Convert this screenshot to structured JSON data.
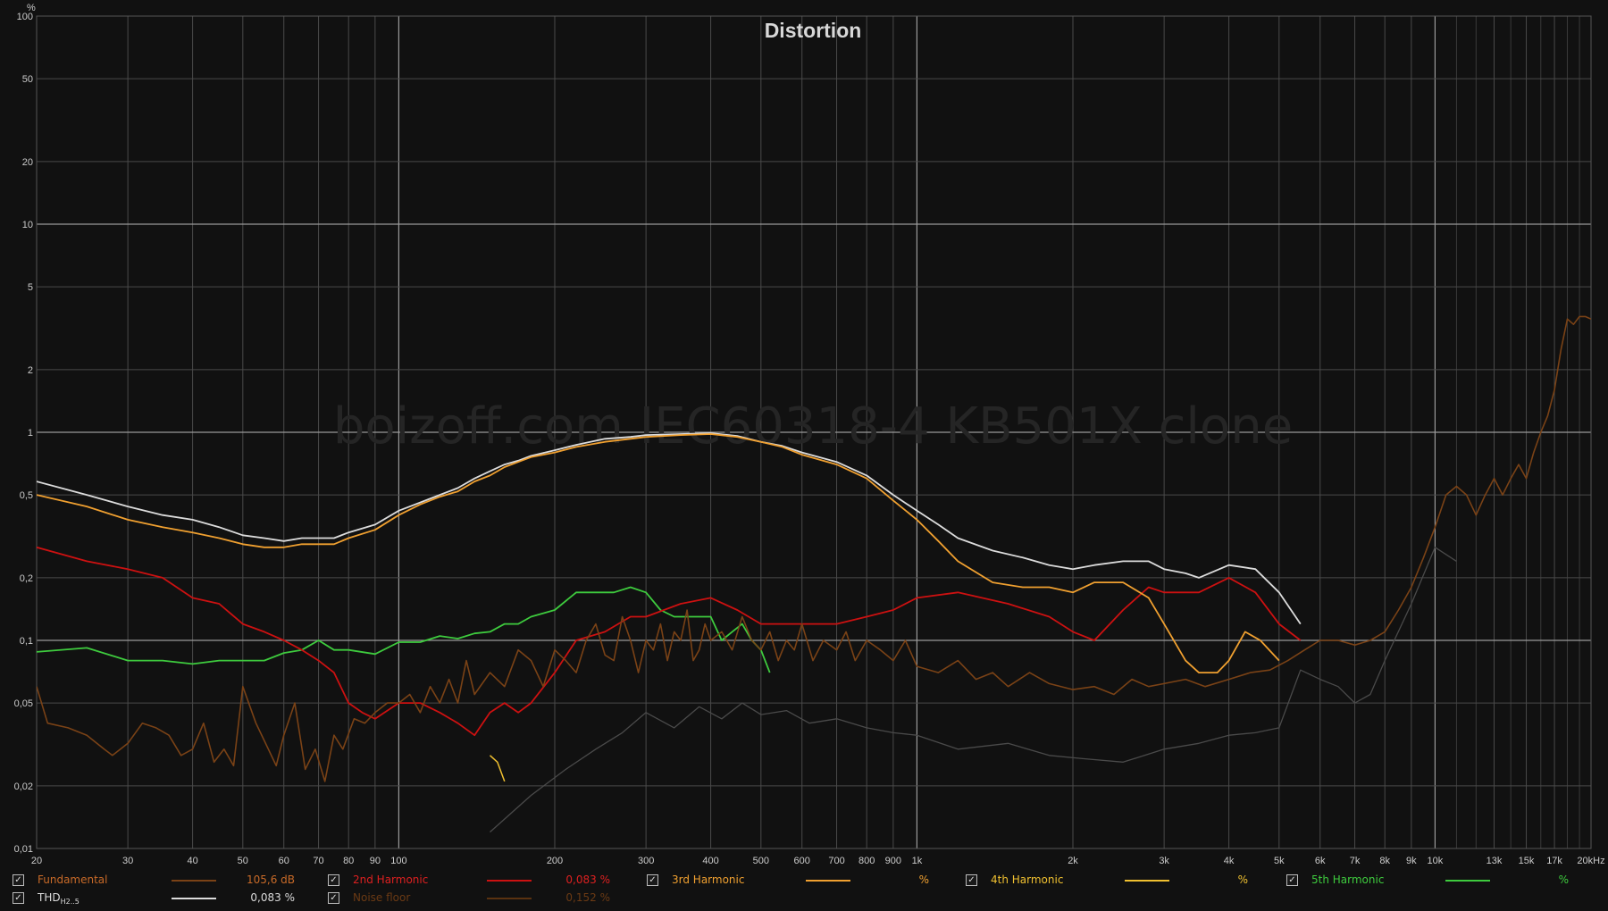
{
  "chart_data": {
    "type": "line",
    "title": "Distortion",
    "watermark": "boizoff.com IEC60318-4 KB501X clone",
    "y_unit": "%",
    "x_unit_label": "20kHz",
    "xscale": "log",
    "yscale": "log",
    "xlim": [
      20,
      20000
    ],
    "ylim": [
      0.01,
      100
    ],
    "grid": true,
    "x_ticks": [
      {
        "v": 20,
        "l": "20"
      },
      {
        "v": 30,
        "l": "30"
      },
      {
        "v": 40,
        "l": "40"
      },
      {
        "v": 50,
        "l": "50"
      },
      {
        "v": 60,
        "l": "60"
      },
      {
        "v": 70,
        "l": "70"
      },
      {
        "v": 80,
        "l": "80"
      },
      {
        "v": 90,
        "l": "90"
      },
      {
        "v": 100,
        "l": "100"
      },
      {
        "v": 200,
        "l": "200"
      },
      {
        "v": 300,
        "l": "300"
      },
      {
        "v": 400,
        "l": "400"
      },
      {
        "v": 500,
        "l": "500"
      },
      {
        "v": 600,
        "l": "600"
      },
      {
        "v": 700,
        "l": "700"
      },
      {
        "v": 800,
        "l": "800"
      },
      {
        "v": 900,
        "l": "900"
      },
      {
        "v": 1000,
        "l": "1k"
      },
      {
        "v": 2000,
        "l": "2k"
      },
      {
        "v": 3000,
        "l": "3k"
      },
      {
        "v": 4000,
        "l": "4k"
      },
      {
        "v": 5000,
        "l": "5k"
      },
      {
        "v": 6000,
        "l": "6k"
      },
      {
        "v": 7000,
        "l": "7k"
      },
      {
        "v": 8000,
        "l": "8k"
      },
      {
        "v": 9000,
        "l": "9k"
      },
      {
        "v": 10000,
        "l": "10k"
      },
      {
        "v": 13000,
        "l": "13k"
      },
      {
        "v": 15000,
        "l": "15k"
      },
      {
        "v": 17000,
        "l": "17k"
      }
    ],
    "x_minor": [
      11000,
      12000,
      14000,
      16000,
      18000,
      19000
    ],
    "y_ticks": [
      {
        "v": 100,
        "l": "100"
      },
      {
        "v": 50,
        "l": "50"
      },
      {
        "v": 20,
        "l": "20"
      },
      {
        "v": 10,
        "l": "10"
      },
      {
        "v": 5,
        "l": "5"
      },
      {
        "v": 2,
        "l": "2"
      },
      {
        "v": 1,
        "l": "1"
      },
      {
        "v": 0.5,
        "l": "0,5"
      },
      {
        "v": 0.2,
        "l": "0,2"
      },
      {
        "v": 0.1,
        "l": "0,1"
      },
      {
        "v": 0.05,
        "l": "0,05"
      },
      {
        "v": 0.02,
        "l": "0,02"
      },
      {
        "v": 0.01,
        "l": "0,01"
      }
    ],
    "series": [
      {
        "name": "Noise floor",
        "color": "#4a4a4a",
        "width": 1.3,
        "x": [
          150,
          180,
          210,
          240,
          270,
          300,
          340,
          380,
          420,
          460,
          500,
          560,
          620,
          700,
          800,
          900,
          1000,
          1200,
          1500,
          1800,
          2100,
          2500,
          3000,
          3500,
          4000,
          4500,
          5000,
          5500,
          6000,
          6500,
          7000,
          7500,
          8000,
          9000,
          10000,
          11000
        ],
        "y": [
          0.012,
          0.018,
          0.024,
          0.03,
          0.036,
          0.045,
          0.038,
          0.048,
          0.042,
          0.05,
          0.044,
          0.046,
          0.04,
          0.042,
          0.038,
          0.036,
          0.035,
          0.03,
          0.032,
          0.028,
          0.027,
          0.026,
          0.03,
          0.032,
          0.035,
          0.036,
          0.038,
          0.072,
          0.065,
          0.06,
          0.05,
          0.055,
          0.08,
          0.15,
          0.28,
          0.24
        ]
      },
      {
        "name": "5th Harmonic",
        "color": "#3ecb3e",
        "width": 1.8,
        "x": [
          20,
          25,
          30,
          35,
          40,
          45,
          50,
          55,
          60,
          65,
          70,
          75,
          80,
          90,
          100,
          110,
          120,
          130,
          140,
          150,
          160,
          170,
          180,
          200,
          220,
          240,
          260,
          280,
          300,
          320,
          340,
          360,
          380,
          400,
          420,
          440,
          460,
          480,
          500,
          520
        ],
        "y": [
          0.088,
          0.092,
          0.08,
          0.08,
          0.077,
          0.08,
          0.08,
          0.08,
          0.087,
          0.09,
          0.1,
          0.09,
          0.09,
          0.086,
          0.098,
          0.098,
          0.105,
          0.102,
          0.108,
          0.11,
          0.12,
          0.12,
          0.13,
          0.14,
          0.17,
          0.17,
          0.17,
          0.18,
          0.17,
          0.14,
          0.13,
          0.13,
          0.13,
          0.13,
          0.1,
          0.11,
          0.12,
          0.1,
          0.09,
          0.07
        ]
      },
      {
        "name": "2nd Harmonic",
        "color": "#cc1111",
        "width": 1.8,
        "x": [
          20,
          25,
          30,
          35,
          40,
          45,
          50,
          55,
          60,
          65,
          70,
          75,
          80,
          85,
          90,
          100,
          110,
          120,
          130,
          140,
          150,
          160,
          170,
          180,
          200,
          220,
          250,
          280,
          300,
          350,
          400,
          450,
          500,
          600,
          700,
          800,
          900,
          1000,
          1200,
          1500,
          1800,
          2000,
          2200,
          2500,
          2800,
          3000,
          3500,
          4000,
          4500,
          5000,
          5500
        ],
        "y": [
          0.28,
          0.24,
          0.22,
          0.2,
          0.16,
          0.15,
          0.12,
          0.11,
          0.1,
          0.09,
          0.08,
          0.07,
          0.05,
          0.045,
          0.042,
          0.05,
          0.05,
          0.045,
          0.04,
          0.035,
          0.045,
          0.05,
          0.045,
          0.05,
          0.07,
          0.1,
          0.11,
          0.13,
          0.13,
          0.15,
          0.16,
          0.14,
          0.12,
          0.12,
          0.12,
          0.13,
          0.14,
          0.16,
          0.17,
          0.15,
          0.13,
          0.11,
          0.1,
          0.14,
          0.18,
          0.17,
          0.17,
          0.2,
          0.17,
          0.12,
          0.1
        ]
      },
      {
        "name": "Fundamental",
        "color": "#7a4216",
        "width": 1.6,
        "x": [
          20,
          21,
          23,
          25,
          27,
          28,
          30,
          32,
          34,
          36,
          38,
          40,
          42,
          44,
          46,
          48,
          50,
          53,
          56,
          58,
          60,
          63,
          66,
          69,
          72,
          75,
          78,
          82,
          86,
          90,
          95,
          100,
          105,
          110,
          115,
          120,
          125,
          130,
          135,
          140,
          150,
          160,
          170,
          180,
          190,
          200,
          210,
          220,
          230,
          240,
          250,
          260,
          270,
          280,
          290,
          300,
          310,
          320,
          330,
          340,
          350,
          360,
          370,
          380,
          390,
          400,
          420,
          440,
          460,
          480,
          500,
          520,
          540,
          560,
          580,
          600,
          630,
          660,
          700,
          730,
          760,
          800,
          850,
          900,
          950,
          1000,
          1100,
          1200,
          1300,
          1400,
          1500,
          1650,
          1800,
          2000,
          2200,
          2400,
          2600,
          2800,
          3000,
          3300,
          3600,
          4000,
          4400,
          4800,
          5200,
          5600,
          6000,
          6500,
          7000,
          7500,
          8000,
          8500,
          9000,
          9500,
          10000,
          10500,
          11000,
          11500,
          12000,
          12500,
          13000,
          13500,
          14000,
          14500,
          15000,
          15500,
          16000,
          16500,
          17000,
          17500,
          18000,
          18500,
          19000,
          19500,
          20000
        ],
        "y": [
          0.06,
          0.04,
          0.038,
          0.035,
          0.03,
          0.028,
          0.032,
          0.04,
          0.038,
          0.035,
          0.028,
          0.03,
          0.04,
          0.026,
          0.03,
          0.025,
          0.06,
          0.04,
          0.03,
          0.025,
          0.035,
          0.05,
          0.024,
          0.03,
          0.021,
          0.035,
          0.03,
          0.042,
          0.04,
          0.045,
          0.05,
          0.05,
          0.055,
          0.045,
          0.06,
          0.05,
          0.065,
          0.05,
          0.08,
          0.055,
          0.07,
          0.06,
          0.09,
          0.08,
          0.06,
          0.09,
          0.08,
          0.07,
          0.1,
          0.12,
          0.085,
          0.08,
          0.13,
          0.1,
          0.07,
          0.1,
          0.09,
          0.12,
          0.08,
          0.11,
          0.1,
          0.14,
          0.08,
          0.09,
          0.12,
          0.1,
          0.11,
          0.09,
          0.13,
          0.1,
          0.09,
          0.11,
          0.08,
          0.1,
          0.09,
          0.12,
          0.08,
          0.1,
          0.09,
          0.11,
          0.08,
          0.1,
          0.09,
          0.08,
          0.1,
          0.075,
          0.07,
          0.08,
          0.065,
          0.07,
          0.06,
          0.07,
          0.062,
          0.058,
          0.06,
          0.055,
          0.065,
          0.06,
          0.062,
          0.065,
          0.06,
          0.065,
          0.07,
          0.072,
          0.08,
          0.09,
          0.1,
          0.1,
          0.095,
          0.1,
          0.11,
          0.14,
          0.18,
          0.25,
          0.35,
          0.5,
          0.55,
          0.5,
          0.4,
          0.5,
          0.6,
          0.5,
          0.6,
          0.7,
          0.6,
          0.8,
          1.0,
          1.2,
          1.6,
          2.5,
          3.5,
          3.3,
          3.6,
          3.6,
          3.5
        ]
      },
      {
        "name": "4th Harmonic",
        "color": "#f0c030",
        "width": 1.5,
        "x": [
          150,
          155,
          160
        ],
        "y": [
          0.028,
          0.026,
          0.021
        ]
      },
      {
        "name": "THD H2..5",
        "color": "#dcdcdc",
        "width": 1.8,
        "x": [
          20,
          25,
          30,
          35,
          40,
          45,
          50,
          55,
          60,
          65,
          70,
          75,
          80,
          90,
          100,
          110,
          120,
          130,
          140,
          150,
          160,
          170,
          180,
          200,
          220,
          250,
          280,
          300,
          350,
          400,
          450,
          500,
          550,
          600,
          700,
          800,
          900,
          1000,
          1100,
          1200,
          1400,
          1600,
          1800,
          2000,
          2200,
          2500,
          2800,
          3000,
          3300,
          3500,
          4000,
          4500,
          5000,
          5500
        ],
        "y": [
          0.58,
          0.5,
          0.44,
          0.4,
          0.38,
          0.35,
          0.32,
          0.31,
          0.3,
          0.31,
          0.31,
          0.31,
          0.33,
          0.36,
          0.42,
          0.46,
          0.5,
          0.54,
          0.6,
          0.65,
          0.7,
          0.73,
          0.77,
          0.82,
          0.87,
          0.93,
          0.95,
          0.97,
          0.98,
          0.99,
          0.96,
          0.9,
          0.86,
          0.8,
          0.72,
          0.62,
          0.5,
          0.42,
          0.36,
          0.31,
          0.27,
          0.25,
          0.23,
          0.22,
          0.23,
          0.24,
          0.24,
          0.22,
          0.21,
          0.2,
          0.23,
          0.22,
          0.17,
          0.12
        ]
      },
      {
        "name": "3rd Harmonic",
        "color": "#f0a030",
        "width": 1.8,
        "x": [
          20,
          25,
          30,
          35,
          40,
          45,
          50,
          55,
          60,
          65,
          70,
          75,
          80,
          90,
          100,
          110,
          120,
          130,
          140,
          150,
          160,
          170,
          180,
          200,
          220,
          250,
          280,
          300,
          350,
          400,
          450,
          500,
          550,
          600,
          700,
          800,
          900,
          1000,
          1100,
          1200,
          1400,
          1600,
          1800,
          2000,
          2200,
          2500,
          2800,
          3000,
          3300,
          3500,
          3800,
          4000,
          4300,
          4600,
          5000
        ],
        "y": [
          0.5,
          0.44,
          0.38,
          0.35,
          0.33,
          0.31,
          0.29,
          0.28,
          0.28,
          0.29,
          0.29,
          0.29,
          0.31,
          0.34,
          0.4,
          0.45,
          0.49,
          0.52,
          0.58,
          0.62,
          0.68,
          0.72,
          0.76,
          0.8,
          0.85,
          0.9,
          0.93,
          0.95,
          0.97,
          0.98,
          0.95,
          0.9,
          0.85,
          0.78,
          0.7,
          0.6,
          0.47,
          0.38,
          0.3,
          0.24,
          0.19,
          0.18,
          0.18,
          0.17,
          0.19,
          0.19,
          0.16,
          0.12,
          0.08,
          0.07,
          0.07,
          0.08,
          0.11,
          0.1,
          0.08
        ]
      }
    ]
  },
  "legend": {
    "rows": [
      [
        {
          "label": "Fundamental",
          "value": "105,6 dB",
          "color": "#c86a28",
          "line_color": "#7a4216",
          "checked": true
        },
        {
          "label": "2nd Harmonic",
          "value": "0,083 %",
          "color": "#dd2020",
          "line_color": "#cc1111",
          "checked": true
        },
        {
          "label": "3rd Harmonic",
          "value": "%",
          "color": "#f0a030",
          "line_color": "#f0a030",
          "checked": true
        },
        {
          "label": "4th Harmonic",
          "value": "%",
          "color": "#f0c030",
          "line_color": "#f0c030",
          "checked": true
        },
        {
          "label": "5th Harmonic",
          "value": "%",
          "color": "#3ecb3e",
          "line_color": "#3ecb3e",
          "checked": true
        }
      ],
      [
        {
          "label": "THD",
          "label_sub": "H2..5",
          "value": "0,083 %",
          "color": "#dcdcdc",
          "line_color": "#dcdcdc",
          "checked": true
        },
        {
          "label": "Noise floor",
          "value": "0,152 %",
          "color": "#6b3a14",
          "line_color": "#5a3210",
          "checked": true
        }
      ]
    ]
  }
}
